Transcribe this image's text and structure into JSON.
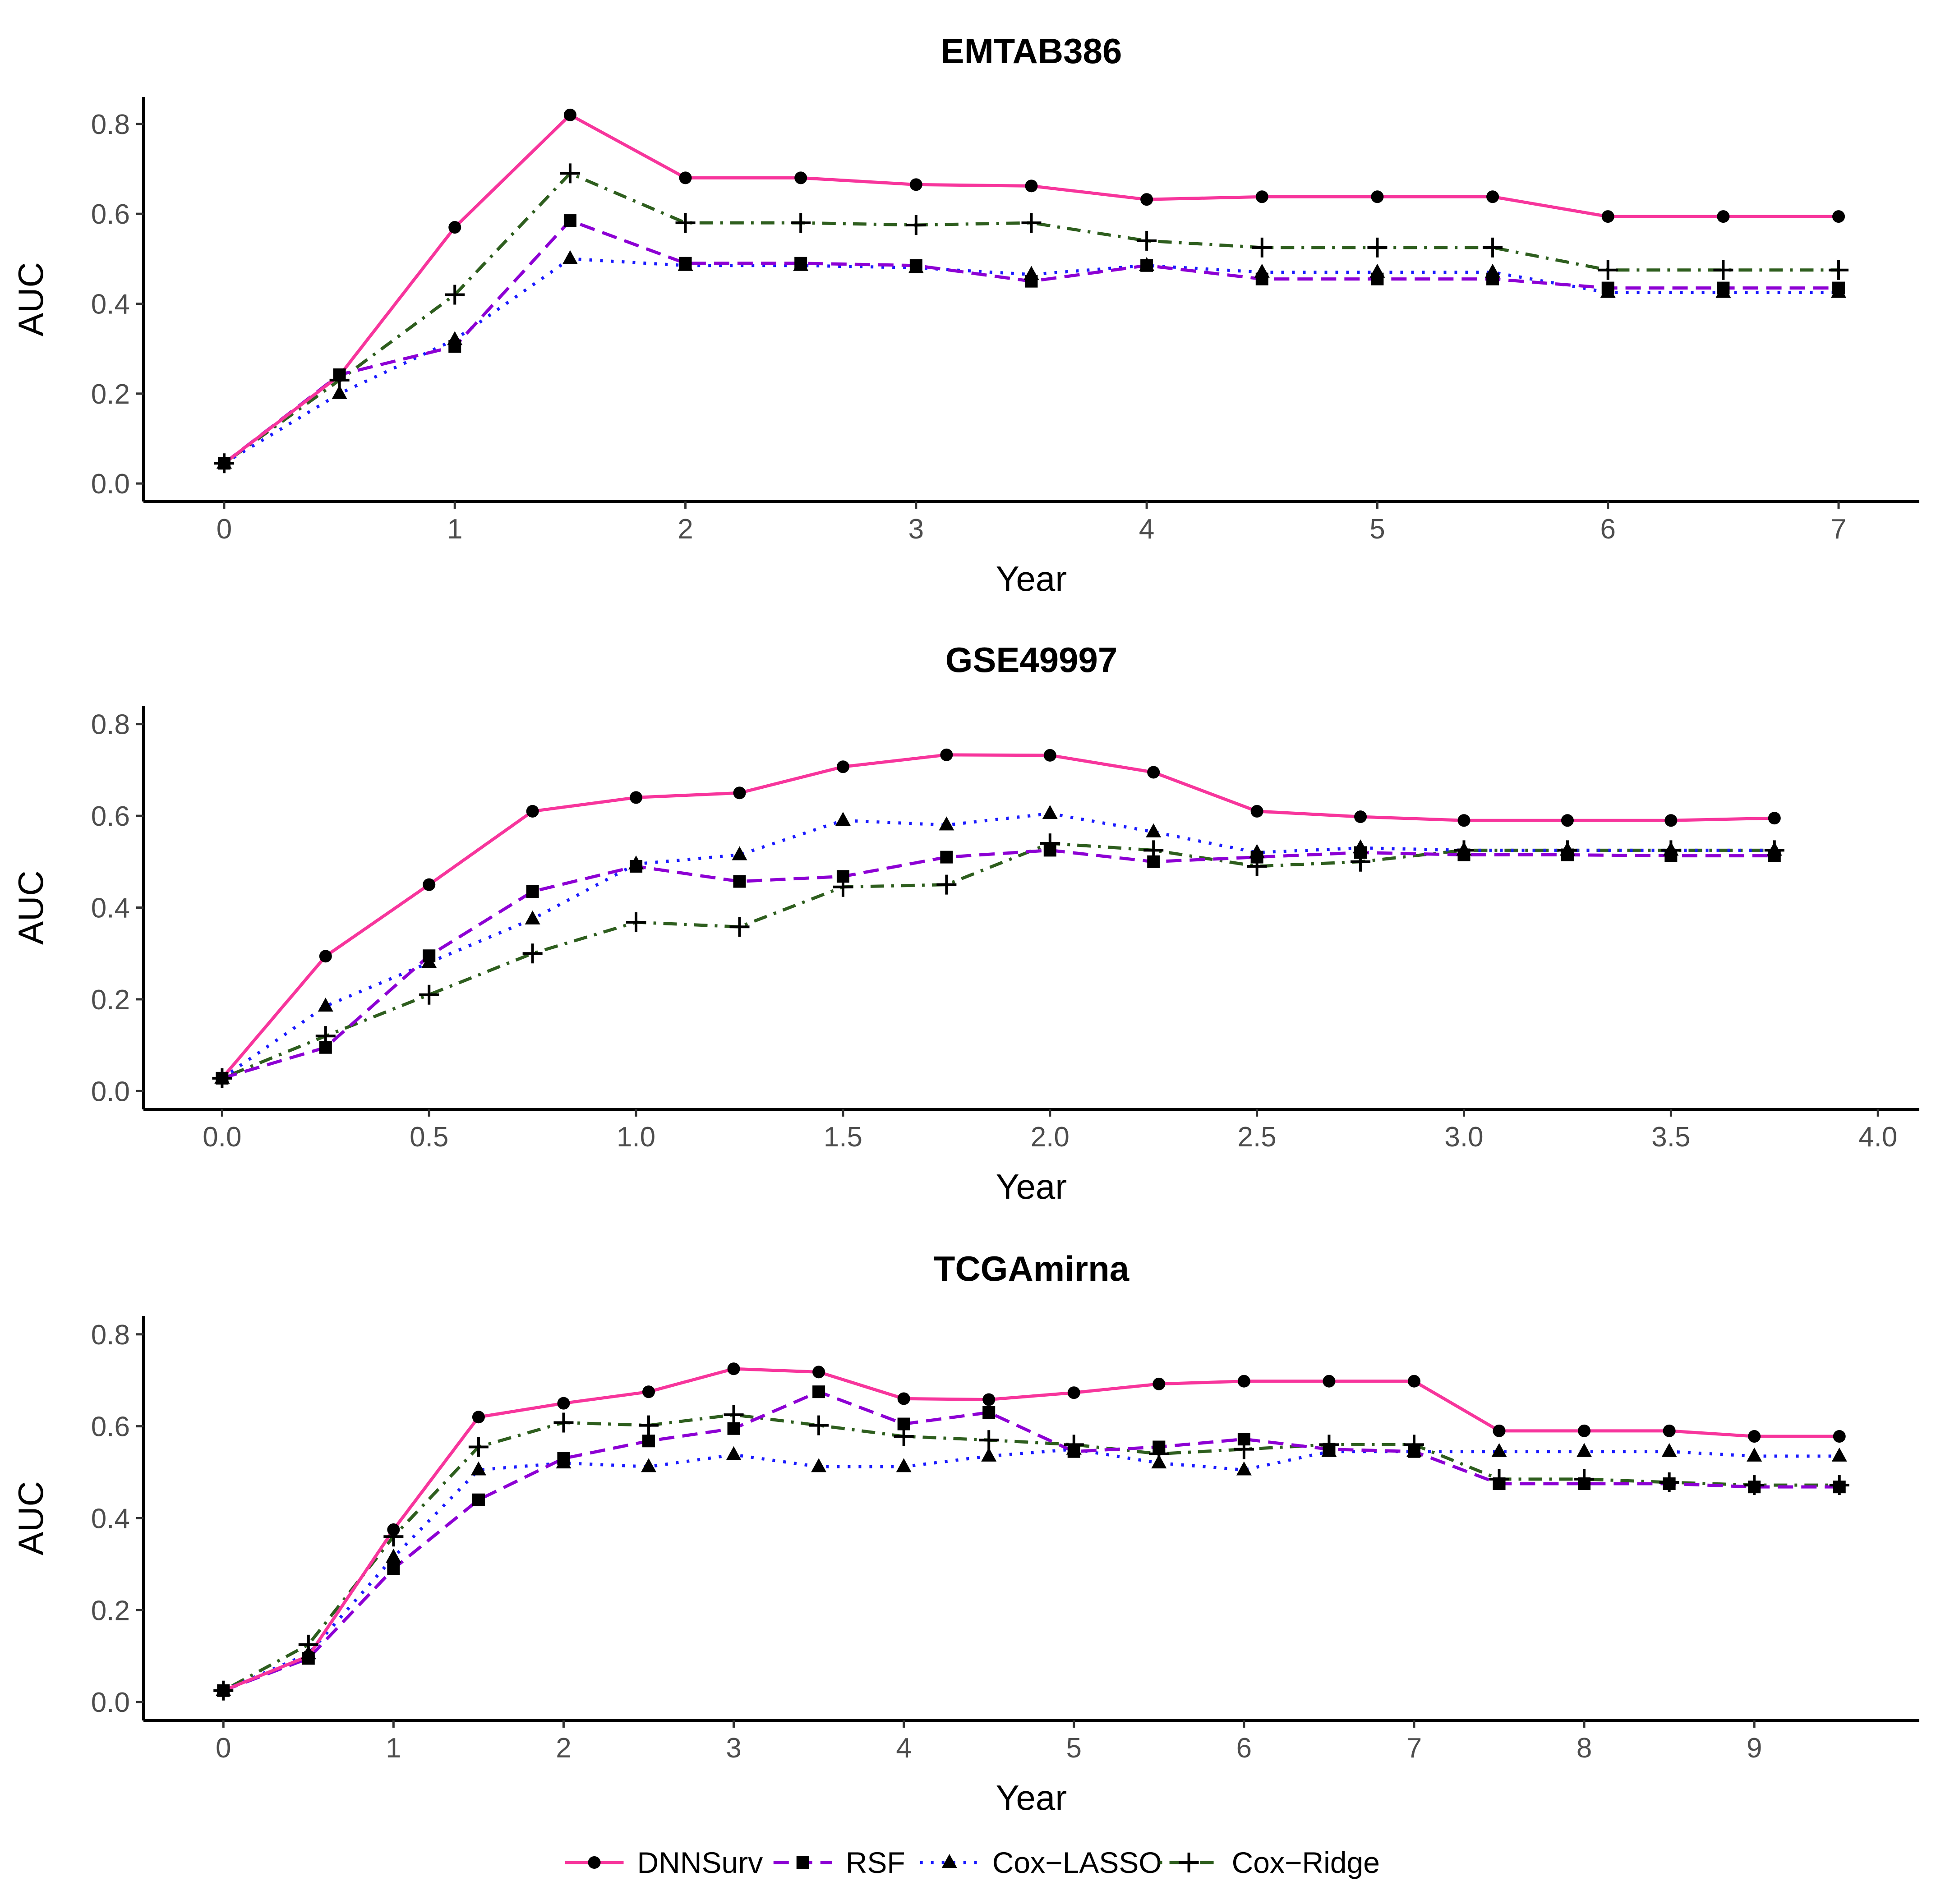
{
  "legend": {
    "position": "bottom",
    "items": [
      {
        "name": "DNNSurv",
        "color": "#f7359c",
        "marker": "circle",
        "dash": "solid"
      },
      {
        "name": "RSF",
        "color": "#8d00d4",
        "marker": "square",
        "dash": "dashed"
      },
      {
        "name": "Cox−LASSO",
        "color": "#1a1aff",
        "marker": "triangle",
        "dash": "dotted"
      },
      {
        "name": "Cox−Ridge",
        "color": "#2e5e1e",
        "marker": "plus",
        "dash": "dotdash"
      }
    ]
  },
  "chart_data": [
    {
      "type": "line",
      "title": "EMTAB386",
      "xlabel": "Year",
      "ylabel": "AUC",
      "xlim": [
        -0.35,
        7.35
      ],
      "ylim": [
        -0.04,
        0.86
      ],
      "xticks": [
        0,
        1,
        2,
        3,
        4,
        5,
        6,
        7
      ],
      "xtick_labels": [
        "0",
        "1",
        "2",
        "3",
        "4",
        "5",
        "6",
        "7"
      ],
      "yticks": [
        0.0,
        0.2,
        0.4,
        0.6,
        0.8
      ],
      "ytick_labels": [
        "0.0",
        "0.2",
        "0.4",
        "0.6",
        "0.8"
      ],
      "x": [
        0,
        0.5,
        1,
        1.5,
        2,
        2.5,
        3,
        3.5,
        4,
        4.5,
        5,
        5.5,
        6,
        6.5,
        7
      ],
      "series": [
        {
          "name": "DNNSurv",
          "values": [
            0.045,
            0.24,
            0.57,
            0.82,
            0.68,
            0.68,
            0.665,
            0.662,
            0.632,
            0.638,
            0.638,
            0.638,
            0.594,
            0.594,
            0.594
          ]
        },
        {
          "name": "RSF",
          "values": [
            0.045,
            0.242,
            0.305,
            0.585,
            0.49,
            0.49,
            0.485,
            0.45,
            0.485,
            0.455,
            0.455,
            0.455,
            0.435,
            0.435,
            0.435
          ]
        },
        {
          "name": "Cox−LASSO",
          "values": [
            0.045,
            0.2,
            0.32,
            0.5,
            0.485,
            0.485,
            0.48,
            0.465,
            0.485,
            0.47,
            0.47,
            0.47,
            0.425,
            0.425,
            0.425
          ]
        },
        {
          "name": "Cox−Ridge",
          "values": [
            0.045,
            0.23,
            0.42,
            0.69,
            0.58,
            0.58,
            0.575,
            0.58,
            0.54,
            0.525,
            0.525,
            0.525,
            0.475,
            0.475,
            0.475
          ]
        }
      ]
    },
    {
      "type": "line",
      "title": "GSE49997",
      "xlabel": "Year",
      "ylabel": "AUC",
      "xlim": [
        -0.19,
        4.1
      ],
      "ylim": [
        -0.04,
        0.84
      ],
      "xticks": [
        0,
        0.5,
        1,
        1.5,
        2,
        2.5,
        3,
        3.5,
        4
      ],
      "xtick_labels": [
        "0.0",
        "0.5",
        "1.0",
        "1.5",
        "2.0",
        "2.5",
        "3.0",
        "3.5",
        "4.0"
      ],
      "yticks": [
        0.0,
        0.2,
        0.4,
        0.6,
        0.8
      ],
      "ytick_labels": [
        "0.0",
        "0.2",
        "0.4",
        "0.6",
        "0.8"
      ],
      "x": [
        0,
        0.25,
        0.5,
        0.75,
        1,
        1.25,
        1.5,
        1.75,
        2,
        2.25,
        2.5,
        2.75,
        3,
        3.25,
        3.5,
        3.75
      ],
      "series": [
        {
          "name": "DNNSurv",
          "values": [
            0.028,
            0.294,
            0.45,
            0.61,
            0.64,
            0.65,
            0.707,
            0.733,
            0.732,
            0.695,
            0.61,
            0.598,
            0.59,
            0.59,
            0.59,
            0.595
          ]
        },
        {
          "name": "RSF",
          "values": [
            0.028,
            0.095,
            0.295,
            0.435,
            0.49,
            0.457,
            0.468,
            0.51,
            0.525,
            0.5,
            0.51,
            0.52,
            0.515,
            0.515,
            0.513,
            0.513
          ]
        },
        {
          "name": "Cox−LASSO",
          "values": [
            0.028,
            0.185,
            0.28,
            0.375,
            0.495,
            0.515,
            0.59,
            0.58,
            0.605,
            0.565,
            0.52,
            0.53,
            0.525,
            0.525,
            0.525,
            0.525
          ]
        },
        {
          "name": "Cox−Ridge",
          "values": [
            0.028,
            0.12,
            0.21,
            0.3,
            0.368,
            0.358,
            0.445,
            0.45,
            0.54,
            0.525,
            0.49,
            0.5,
            0.525,
            0.525,
            0.525,
            0.525
          ]
        }
      ]
    },
    {
      "type": "line",
      "title": "TCGAmirna",
      "xlabel": "Year",
      "ylabel": "AUC",
      "xlim": [
        -0.47,
        9.97
      ],
      "ylim": [
        -0.04,
        0.84
      ],
      "xticks": [
        0,
        1,
        2,
        3,
        4,
        5,
        6,
        7,
        8,
        9
      ],
      "xtick_labels": [
        "0",
        "1",
        "2",
        "3",
        "4",
        "5",
        "6",
        "7",
        "8",
        "9"
      ],
      "yticks": [
        0.0,
        0.2,
        0.4,
        0.6,
        0.8
      ],
      "ytick_labels": [
        "0.0",
        "0.2",
        "0.4",
        "0.6",
        "0.8"
      ],
      "x": [
        0,
        0.5,
        1,
        1.5,
        2,
        2.5,
        3,
        3.5,
        4,
        4.5,
        5,
        5.5,
        6,
        6.5,
        7,
        7.5,
        8,
        8.5,
        9,
        9.5
      ],
      "series": [
        {
          "name": "DNNSurv",
          "values": [
            0.025,
            0.1,
            0.375,
            0.62,
            0.65,
            0.675,
            0.725,
            0.718,
            0.66,
            0.658,
            0.673,
            0.692,
            0.698,
            0.698,
            0.698,
            0.59,
            0.59,
            0.59,
            0.578,
            0.578
          ]
        },
        {
          "name": "RSF",
          "values": [
            0.025,
            0.095,
            0.29,
            0.44,
            0.53,
            0.568,
            0.595,
            0.675,
            0.605,
            0.63,
            0.545,
            0.555,
            0.572,
            0.55,
            0.545,
            0.475,
            0.475,
            0.475,
            0.468,
            0.468
          ]
        },
        {
          "name": "Cox−LASSO",
          "values": [
            0.025,
            0.105,
            0.315,
            0.505,
            0.52,
            0.512,
            0.538,
            0.512,
            0.512,
            0.535,
            0.55,
            0.52,
            0.505,
            0.545,
            0.545,
            0.545,
            0.545,
            0.545,
            0.535,
            0.535
          ]
        },
        {
          "name": "Cox−Ridge",
          "values": [
            0.025,
            0.125,
            0.36,
            0.555,
            0.608,
            0.602,
            0.625,
            0.602,
            0.578,
            0.57,
            0.56,
            0.54,
            0.55,
            0.56,
            0.56,
            0.485,
            0.485,
            0.478,
            0.472,
            0.472
          ]
        }
      ]
    }
  ]
}
